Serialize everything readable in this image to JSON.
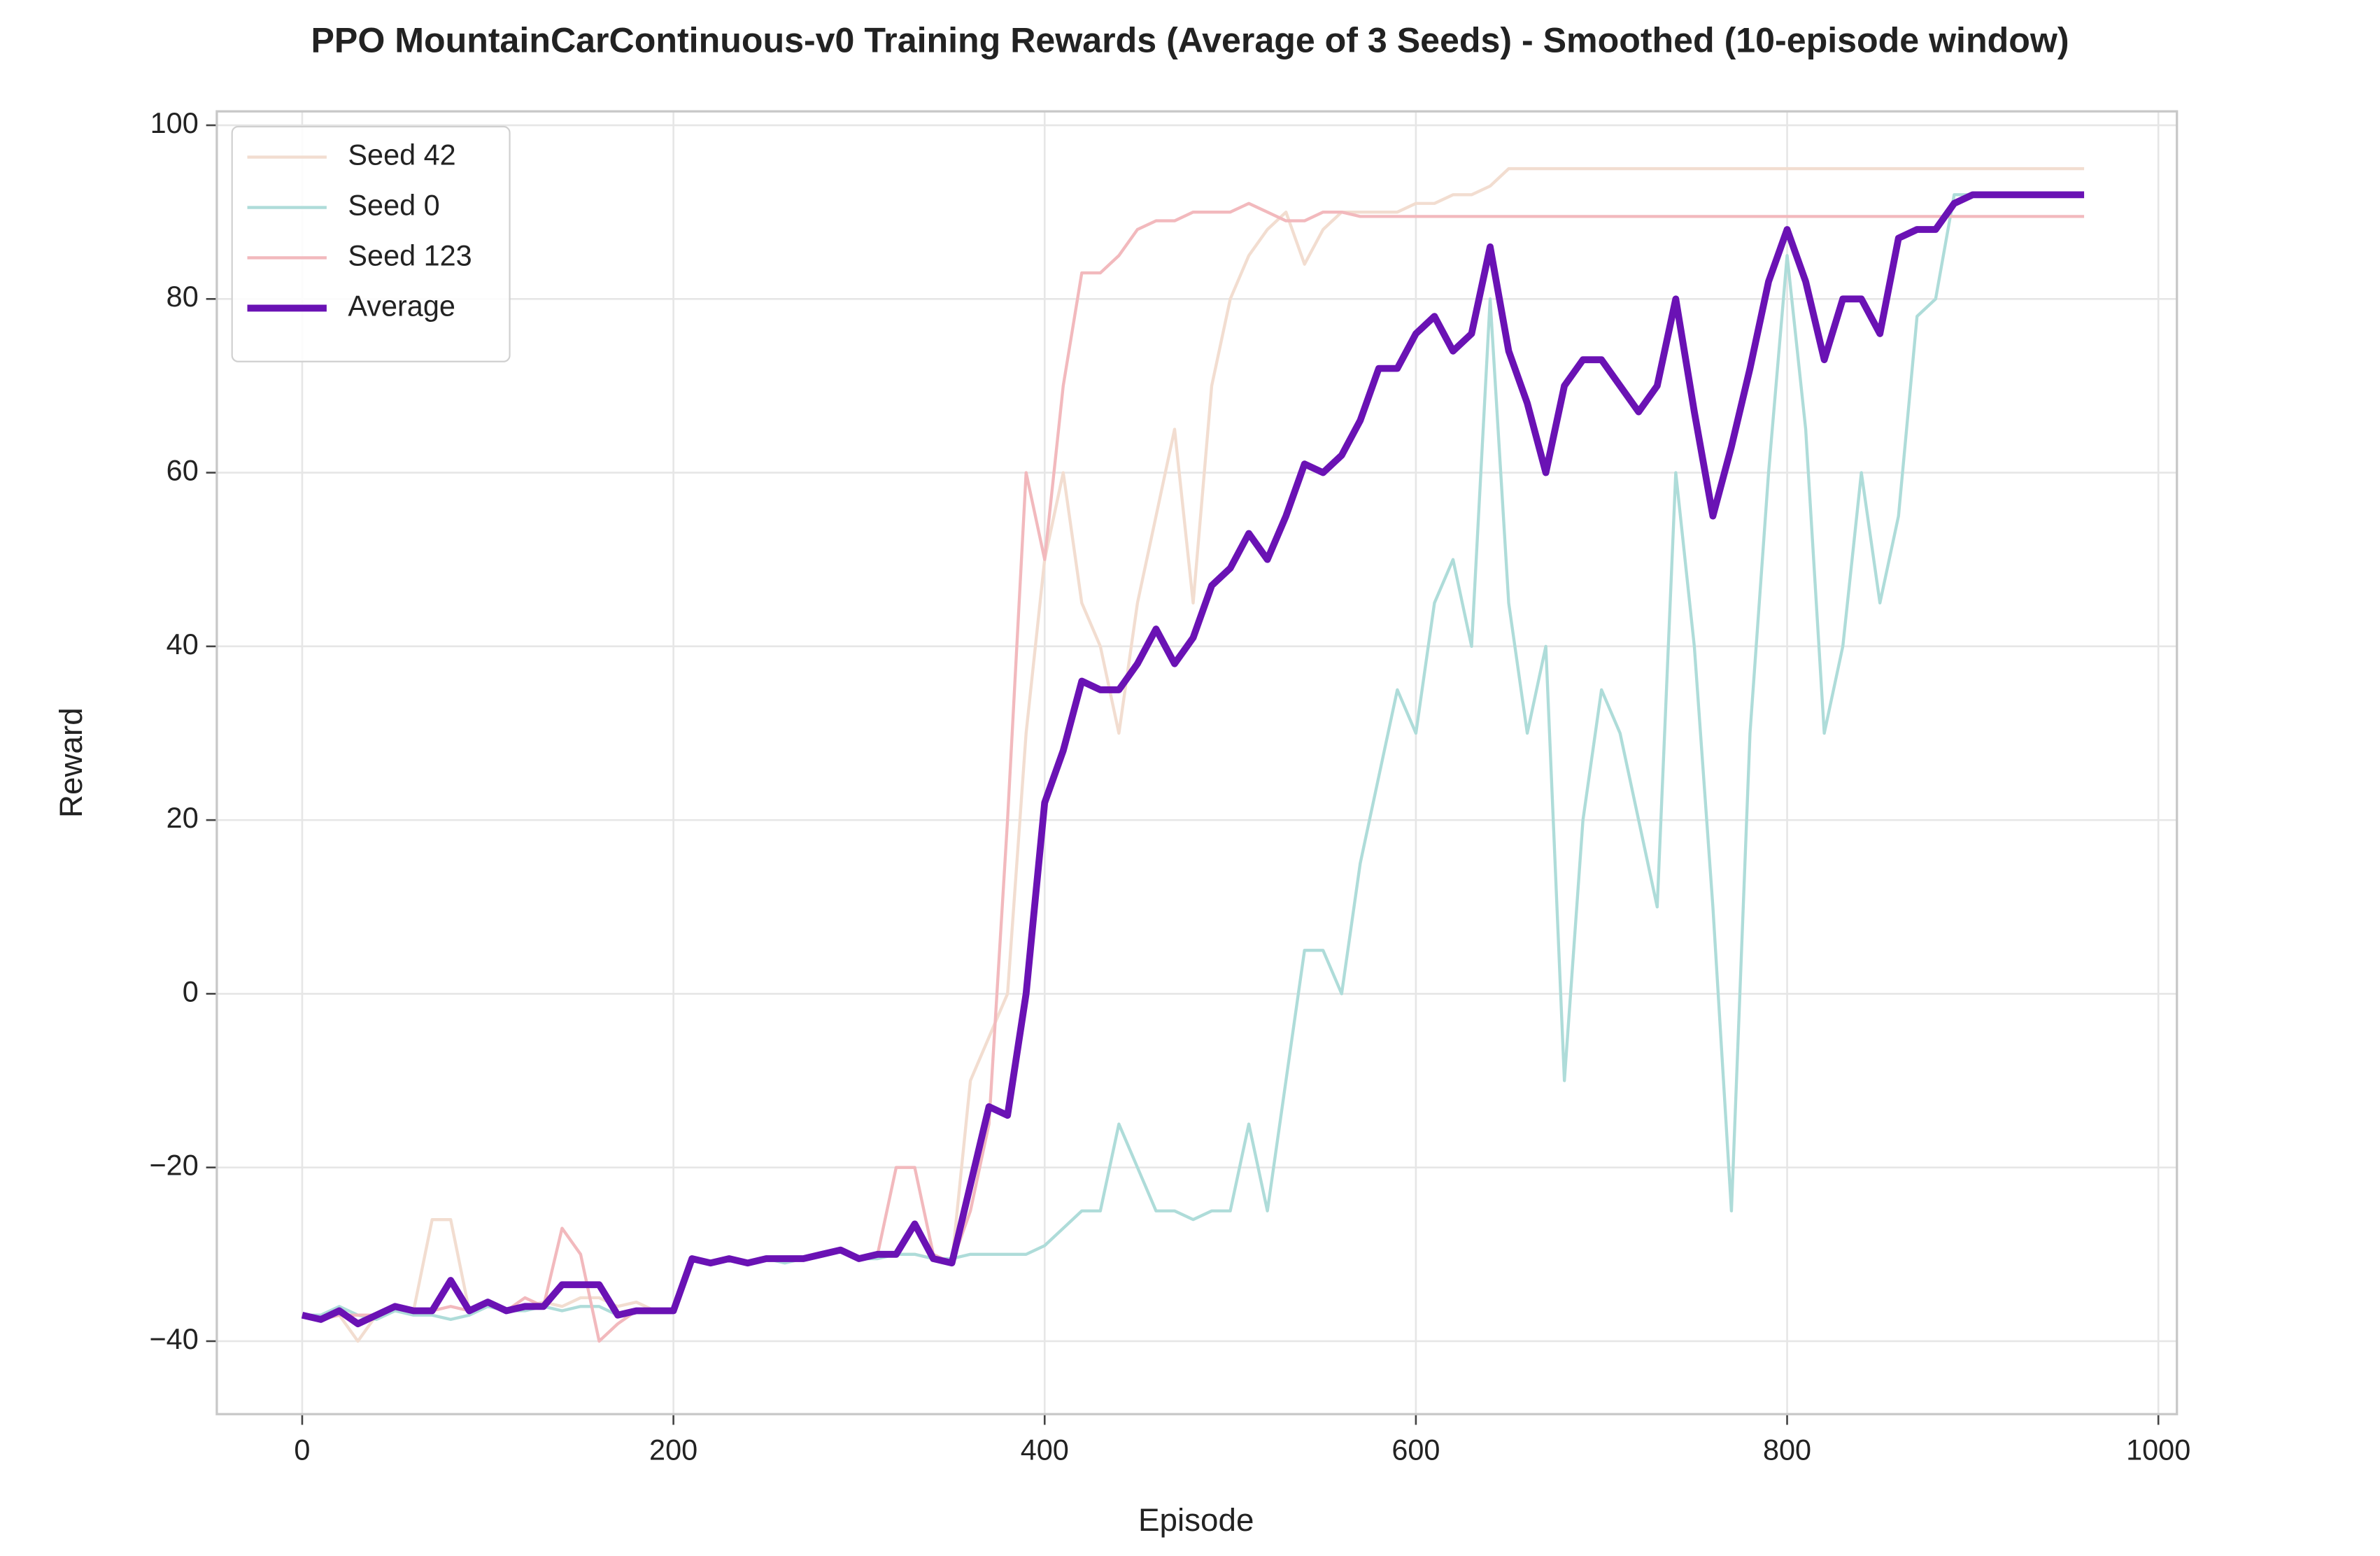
{
  "chart_data": {
    "type": "line",
    "title": "PPO MountainCarContinuous-v0 Training Rewards (Average of 3 Seeds) - Smoothed (10-episode window)",
    "x_label": "Episode",
    "y_label": "Reward",
    "xlim": [
      -46,
      1010
    ],
    "ylim": [
      -48.4,
      101.6
    ],
    "xticks": [
      0,
      200,
      400,
      600,
      800,
      1000
    ],
    "yticks": [
      {
        "value": -40,
        "label": "−40"
      },
      {
        "value": -20,
        "label": "−20"
      },
      0,
      20,
      40,
      60,
      80,
      100
    ],
    "grid": true,
    "legend": "upper left",
    "x": [
      0,
      10,
      20,
      30,
      40,
      50,
      60,
      70,
      80,
      90,
      100,
      110,
      120,
      130,
      140,
      150,
      160,
      170,
      180,
      190,
      200,
      210,
      220,
      230,
      240,
      250,
      260,
      270,
      280,
      290,
      300,
      310,
      320,
      330,
      340,
      350,
      360,
      370,
      380,
      390,
      400,
      410,
      420,
      430,
      440,
      450,
      460,
      470,
      480,
      490,
      500,
      510,
      520,
      530,
      540,
      550,
      560,
      570,
      580,
      590,
      600,
      610,
      620,
      630,
      640,
      650,
      660,
      670,
      680,
      690,
      700,
      710,
      720,
      730,
      740,
      750,
      760,
      770,
      780,
      790,
      800,
      810,
      820,
      830,
      840,
      850,
      860,
      870,
      880,
      890,
      900,
      910,
      920,
      930,
      940,
      950,
      960
    ],
    "series": [
      {
        "name": "Seed 42",
        "color": "#f2ddd0",
        "width": 2,
        "values": [
          -37,
          -37.5,
          -37,
          -40,
          -37,
          -36,
          -36.5,
          -26,
          -26,
          -36.5,
          -35.5,
          -36.5,
          -36,
          -35.5,
          -36,
          -35,
          -35,
          -36,
          -35.5,
          -36.5,
          -36.5,
          -30.5,
          -31,
          -30.5,
          -31,
          -30.5,
          -30.5,
          -30.5,
          -30,
          -29.5,
          -30.5,
          -30,
          -30,
          -30,
          -30.5,
          -31,
          -10,
          -5,
          0,
          30,
          50,
          60,
          45,
          40,
          30,
          45,
          55,
          65,
          45,
          70,
          80,
          85,
          88,
          90,
          84,
          88,
          90,
          90,
          90,
          90,
          91,
          91,
          92,
          92,
          93,
          95,
          95,
          95,
          95,
          95,
          95,
          95,
          95,
          95,
          95,
          95,
          95,
          95,
          95,
          95,
          95,
          95,
          95,
          95,
          95,
          95,
          95,
          95,
          95,
          95,
          95,
          95,
          95,
          95,
          95,
          95,
          95
        ]
      },
      {
        "name": "Seed 0",
        "color": "#aedcd9",
        "width": 2,
        "values": [
          -37,
          -37,
          -36,
          -37,
          -37.5,
          -36.5,
          -37,
          -37,
          -37.5,
          -37,
          -36,
          -36.5,
          -36.5,
          -36,
          -36.5,
          -36,
          -36,
          -37,
          -36.5,
          -36.5,
          -36.5,
          -30.5,
          -31,
          -30.5,
          -31,
          -30.5,
          -31,
          -30.5,
          -30,
          -29.5,
          -30.5,
          -30.5,
          -30,
          -30,
          -30.5,
          -30.5,
          -30,
          -30,
          -30,
          -30,
          -29,
          -27,
          -25,
          -25,
          -15,
          -20,
          -25,
          -25,
          -26,
          -25,
          -25,
          -15,
          -25,
          -10,
          5,
          5,
          0,
          15,
          25,
          35,
          30,
          45,
          50,
          40,
          80,
          45,
          30,
          40,
          -10,
          20,
          35,
          30,
          20,
          10,
          60,
          40,
          10,
          -25,
          30,
          60,
          85,
          65,
          30,
          40,
          60,
          45,
          55,
          78,
          80,
          92,
          92,
          92,
          92,
          92,
          92,
          92,
          92
        ]
      },
      {
        "name": "Seed 123",
        "color": "#f2b9bd",
        "width": 2,
        "values": [
          -37,
          -37.5,
          -37,
          -37,
          -37,
          -36,
          -36.5,
          -36.5,
          -36,
          -36.5,
          -35.5,
          -36.5,
          -35,
          -36,
          -27,
          -30,
          -40,
          -38,
          -36.5,
          -36.5,
          -36.5,
          -30.5,
          -31,
          -30.5,
          -31,
          -30.5,
          -30.5,
          -30.5,
          -30,
          -29.5,
          -30.5,
          -30,
          -20,
          -20,
          -30,
          -31,
          -25,
          -15,
          20,
          60,
          50,
          70,
          83,
          83,
          85,
          88,
          89,
          89,
          90,
          90,
          90,
          91,
          90,
          89,
          89,
          90,
          90,
          89.5,
          89.5,
          89.5,
          89.5,
          89.5,
          89.5,
          89.5,
          89.5,
          89.5,
          89.5,
          89.5,
          89.5,
          89.5,
          89.5,
          89.5,
          89.5,
          89.5,
          89.5,
          89.5,
          89.5,
          89.5,
          89.5,
          89.5,
          89.5,
          89.5,
          89.5,
          89.5,
          89.5,
          89.5,
          89.5,
          89.5,
          89.5,
          89.5,
          89.5,
          89.5,
          89.5,
          89.5,
          89.5,
          89.5,
          89.5
        ]
      },
      {
        "name": "Average",
        "color": "#6a12b4",
        "width": 4.5,
        "values": [
          -37,
          -37.5,
          -36.5,
          -38,
          -37,
          -36,
          -36.5,
          -36.5,
          -33,
          -36.5,
          -35.5,
          -36.5,
          -36,
          -36,
          -33.5,
          -33.5,
          -33.5,
          -37,
          -36.5,
          -36.5,
          -36.5,
          -30.5,
          -31,
          -30.5,
          -31,
          -30.5,
          -30.5,
          -30.5,
          -30,
          -29.5,
          -30.5,
          -30,
          -30,
          -26.5,
          -30.5,
          -31,
          -22,
          -13,
          -14,
          0,
          22,
          28,
          36,
          35,
          35,
          38,
          42,
          38,
          41,
          47,
          49,
          53,
          50,
          55,
          61,
          60,
          62,
          66,
          72,
          72,
          76,
          78,
          74,
          76,
          86,
          74,
          68,
          60,
          70,
          73,
          73,
          70,
          67,
          70,
          80,
          67,
          55,
          63,
          72,
          82,
          88,
          82,
          73,
          80,
          80,
          76,
          87,
          88,
          88,
          91,
          92,
          92,
          92,
          92,
          92,
          92,
          92
        ]
      }
    ]
  }
}
